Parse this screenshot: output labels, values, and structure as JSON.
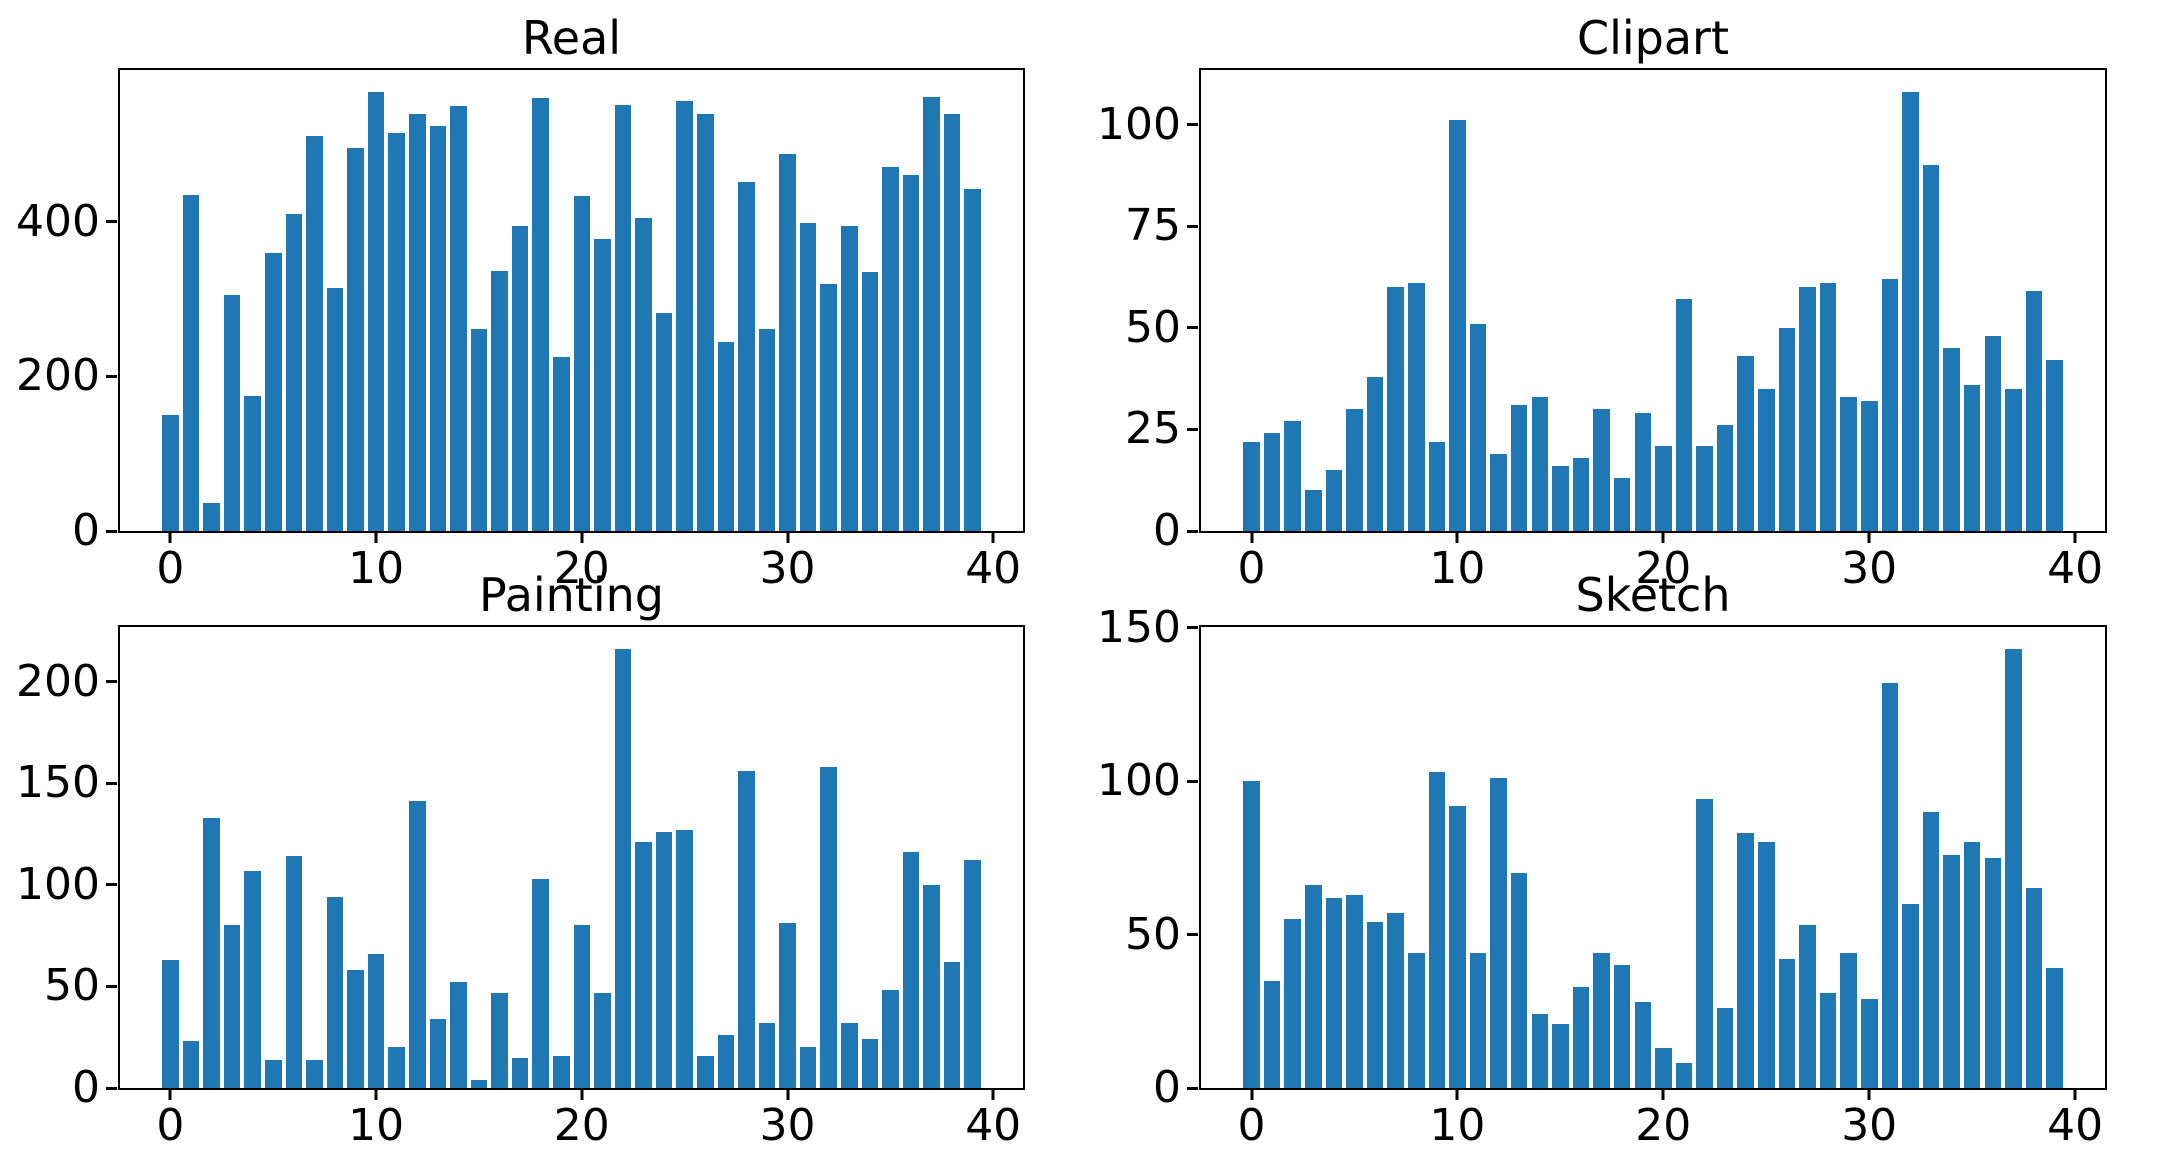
{
  "figure": {
    "background_color": "#ffffff",
    "bar_color": "#1f77b4",
    "axis_color": "#000000",
    "grid": false,
    "legend": null
  },
  "chart_data": [
    {
      "type": "bar",
      "title": "Real",
      "categories": [
        0,
        1,
        2,
        3,
        4,
        5,
        6,
        7,
        8,
        9,
        10,
        11,
        12,
        13,
        14,
        15,
        16,
        17,
        18,
        19,
        20,
        21,
        22,
        23,
        24,
        25,
        26,
        27,
        28,
        29,
        30,
        31,
        32,
        33,
        34,
        35,
        36,
        37,
        38,
        39
      ],
      "values": [
        150,
        435,
        36,
        306,
        175,
        360,
        410,
        511,
        315,
        495,
        568,
        515,
        540,
        524,
        550,
        262,
        337,
        395,
        560,
        225,
        433,
        378,
        551,
        405,
        282,
        556,
        540,
        245,
        452,
        261,
        488,
        398,
        319,
        395,
        335,
        471,
        461,
        561,
        540,
        442
      ],
      "xlabel": "",
      "ylabel": "",
      "xticks": [
        0,
        10,
        20,
        30,
        40
      ],
      "yticks": [
        0,
        200,
        400
      ],
      "xlim": [
        -2.45,
        41.45
      ],
      "ylim": [
        0,
        596.4
      ],
      "bar_width": 0.8,
      "grid": false,
      "legend_position": "none"
    },
    {
      "type": "bar",
      "title": "Clipart",
      "categories": [
        0,
        1,
        2,
        3,
        4,
        5,
        6,
        7,
        8,
        9,
        10,
        11,
        12,
        13,
        14,
        15,
        16,
        17,
        18,
        19,
        20,
        21,
        22,
        23,
        24,
        25,
        26,
        27,
        28,
        29,
        30,
        31,
        32,
        33,
        34,
        35,
        36,
        37,
        38,
        39
      ],
      "values": [
        22,
        24,
        27,
        10,
        15,
        30,
        38,
        60,
        61,
        22,
        101,
        51,
        19,
        31,
        33,
        16,
        18,
        30,
        13,
        29,
        21,
        57,
        21,
        26,
        43,
        35,
        50,
        60,
        61,
        33,
        32,
        62,
        108,
        90,
        45,
        36,
        48,
        35,
        59,
        42
      ],
      "xlabel": "",
      "ylabel": "",
      "xticks": [
        0,
        10,
        20,
        30,
        40
      ],
      "yticks": [
        0,
        25,
        50,
        75,
        100
      ],
      "xlim": [
        -2.45,
        41.45
      ],
      "ylim": [
        0,
        113.4
      ],
      "bar_width": 0.8,
      "grid": false,
      "legend_position": "none"
    },
    {
      "type": "bar",
      "title": "Painting",
      "categories": [
        0,
        1,
        2,
        3,
        4,
        5,
        6,
        7,
        8,
        9,
        10,
        11,
        12,
        13,
        14,
        15,
        16,
        17,
        18,
        19,
        20,
        21,
        22,
        23,
        24,
        25,
        26,
        27,
        28,
        29,
        30,
        31,
        32,
        33,
        34,
        35,
        36,
        37,
        38,
        39
      ],
      "values": [
        63,
        23,
        133,
        80,
        107,
        14,
        114,
        14,
        94,
        58,
        66,
        20,
        141,
        34,
        52,
        4,
        47,
        15,
        103,
        16,
        80,
        47,
        216,
        121,
        126,
        127,
        16,
        26,
        156,
        32,
        81,
        20,
        158,
        32,
        24,
        48,
        116,
        100,
        62,
        112
      ],
      "xlabel": "",
      "ylabel": "",
      "xticks": [
        0,
        10,
        20,
        30,
        40
      ],
      "yticks": [
        0,
        50,
        100,
        150,
        200
      ],
      "xlim": [
        -2.45,
        41.45
      ],
      "ylim": [
        0,
        226.8
      ],
      "bar_width": 0.8,
      "grid": false,
      "legend_position": "none"
    },
    {
      "type": "bar",
      "title": "Sketch",
      "categories": [
        0,
        1,
        2,
        3,
        4,
        5,
        6,
        7,
        8,
        9,
        10,
        11,
        12,
        13,
        14,
        15,
        16,
        17,
        18,
        19,
        20,
        21,
        22,
        23,
        24,
        25,
        26,
        27,
        28,
        29,
        30,
        31,
        32,
        33,
        34,
        35,
        36,
        37,
        38,
        39
      ],
      "values": [
        100,
        35,
        55,
        66,
        62,
        63,
        54,
        57,
        44,
        103,
        92,
        44,
        101,
        70,
        24,
        21,
        33,
        44,
        40,
        28,
        13,
        8,
        94,
        26,
        83,
        80,
        42,
        53,
        31,
        44,
        29,
        132,
        60,
        90,
        76,
        80,
        75,
        143,
        65,
        39
      ],
      "xlabel": "",
      "ylabel": "",
      "xticks": [
        0,
        10,
        20,
        30,
        40
      ],
      "yticks": [
        0,
        50,
        100,
        150
      ],
      "xlim": [
        -2.45,
        41.45
      ],
      "ylim": [
        0,
        150.15
      ],
      "bar_width": 0.8,
      "grid": false,
      "legend_position": "none"
    }
  ]
}
